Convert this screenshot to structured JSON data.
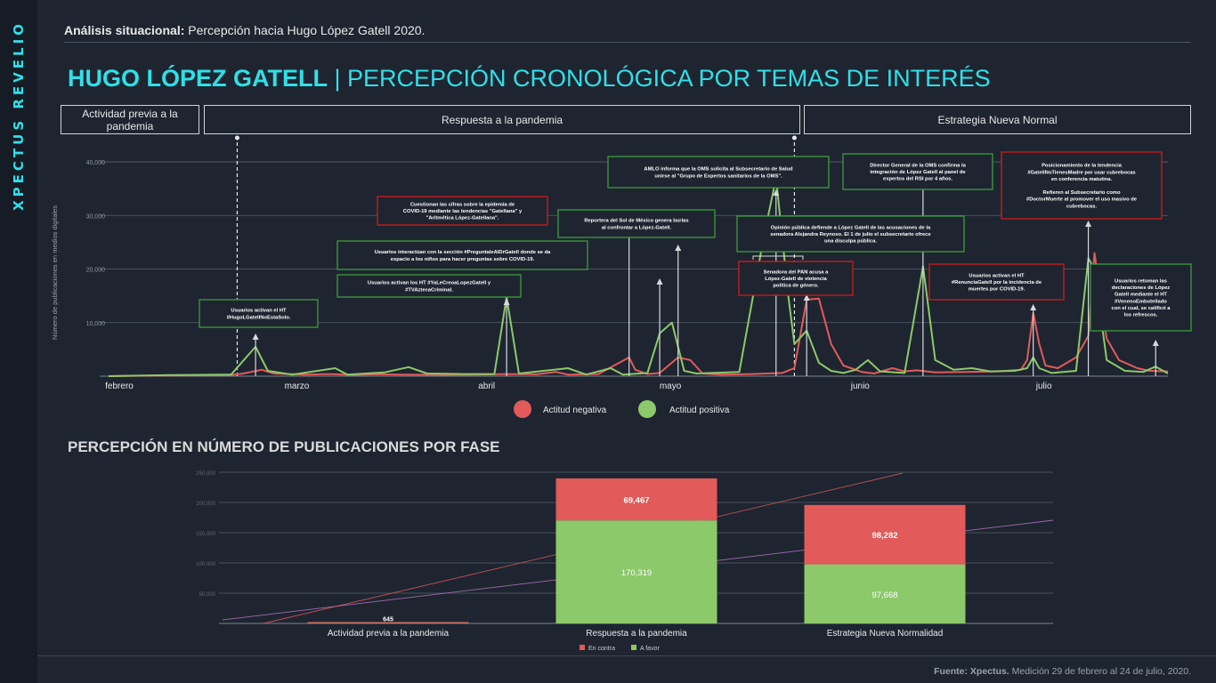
{
  "sidebar": {
    "brand": "XPECTUS REVELIO"
  },
  "header": {
    "label_bold": "Análisis situacional:",
    "label_rest": " Percepción hacia Hugo López Gatell 2020.",
    "title_bold": "HUGO LÓPEZ GATELL",
    "title_rest": " | PERCEPCIÓN CRONOLÓGICA POR TEMAS DE INTERÉS"
  },
  "phases": [
    {
      "label": "Actividad previa a la pandemia"
    },
    {
      "label": "Respuesta a la pandemia"
    },
    {
      "label": "Estrategia Nueva Normal"
    }
  ],
  "colors": {
    "negative": "#e25a5a",
    "positive": "#8cc96a",
    "accent": "#2fe0e8",
    "box_green": "#3d9b3d",
    "box_red": "#d01a1a"
  },
  "chart_data": [
    {
      "type": "line",
      "title": "",
      "ylabel": "Número de publicaciones en medios digitales",
      "yticks": [
        "10,000",
        "20,000",
        "30,000",
        "40,000"
      ],
      "ylim": [
        0,
        42000
      ],
      "xlim": [
        0,
        173
      ],
      "xticks": [
        {
          "x": 0,
          "label": "febrero"
        },
        {
          "x": 29,
          "label": "marzo"
        },
        {
          "x": 60,
          "label": "abril"
        },
        {
          "x": 90,
          "label": "mayo"
        },
        {
          "x": 121,
          "label": "junio"
        },
        {
          "x": 151,
          "label": "julio"
        }
      ],
      "phase_markers": [
        21,
        112
      ],
      "legend": {
        "position": "bottom-center"
      },
      "series": [
        {
          "name": "Actitud negativa",
          "color": "#e25a5a",
          "points": [
            [
              0,
              0
            ],
            [
              10,
              150
            ],
            [
              20,
              200
            ],
            [
              22,
              500
            ],
            [
              25,
              1200
            ],
            [
              27,
              500
            ],
            [
              32,
              300
            ],
            [
              36,
              400
            ],
            [
              40,
              250
            ],
            [
              44,
              350
            ],
            [
              48,
              300
            ],
            [
              55,
              250
            ],
            [
              60,
              300
            ],
            [
              65,
              400
            ],
            [
              70,
              350
            ],
            [
              73,
              800
            ],
            [
              75,
              300
            ],
            [
              80,
              400
            ],
            [
              85,
              3500
            ],
            [
              86,
              1200
            ],
            [
              88,
              400
            ],
            [
              90,
              600
            ],
            [
              93,
              3500
            ],
            [
              95,
              3000
            ],
            [
              97,
              500
            ],
            [
              100,
              300
            ],
            [
              105,
              400
            ],
            [
              110,
              600
            ],
            [
              112,
              1500
            ],
            [
              114,
              14300
            ],
            [
              116,
              14500
            ],
            [
              118,
              6000
            ],
            [
              120,
              2000
            ],
            [
              123,
              800
            ],
            [
              125,
              500
            ],
            [
              128,
              1500
            ],
            [
              130,
              900
            ],
            [
              132,
              1100
            ],
            [
              135,
              700
            ],
            [
              140,
              800
            ],
            [
              145,
              900
            ],
            [
              149,
              1200
            ],
            [
              150,
              3000
            ],
            [
              151,
              11800
            ],
            [
              152,
              6000
            ],
            [
              153,
              2000
            ],
            [
              155,
              1500
            ],
            [
              158,
              3500
            ],
            [
              160,
              7500
            ],
            [
              161,
              23000
            ],
            [
              162,
              15000
            ],
            [
              163,
              7000
            ],
            [
              165,
              3000
            ],
            [
              168,
              1500
            ],
            [
              170,
              1000
            ],
            [
              173,
              900
            ]
          ]
        },
        {
          "name": "Actitud positiva",
          "color": "#8cc96a",
          "points": [
            [
              0,
              0
            ],
            [
              10,
              200
            ],
            [
              20,
              300
            ],
            [
              24,
              5500
            ],
            [
              26,
              1000
            ],
            [
              30,
              300
            ],
            [
              37,
              1500
            ],
            [
              39,
              300
            ],
            [
              45,
              700
            ],
            [
              49,
              1700
            ],
            [
              52,
              500
            ],
            [
              58,
              400
            ],
            [
              63,
              400
            ],
            [
              65,
              14800
            ],
            [
              67,
              500
            ],
            [
              75,
              1500
            ],
            [
              78,
              300
            ],
            [
              82,
              1500
            ],
            [
              84,
              300
            ],
            [
              88,
              600
            ],
            [
              90,
              8000
            ],
            [
              92,
              10000
            ],
            [
              94,
              1000
            ],
            [
              96,
              500
            ],
            [
              103,
              800
            ],
            [
              107,
              26000
            ],
            [
              109,
              37000
            ],
            [
              111,
              15000
            ],
            [
              112,
              6000
            ],
            [
              114,
              8500
            ],
            [
              116,
              2500
            ],
            [
              118,
              1000
            ],
            [
              120,
              600
            ],
            [
              122,
              1200
            ],
            [
              124,
              3000
            ],
            [
              126,
              900
            ],
            [
              130,
              600
            ],
            [
              133,
              20500
            ],
            [
              135,
              3000
            ],
            [
              138,
              1200
            ],
            [
              141,
              1500
            ],
            [
              144,
              900
            ],
            [
              148,
              1000
            ],
            [
              150,
              1500
            ],
            [
              151,
              3500
            ],
            [
              152,
              1500
            ],
            [
              154,
              600
            ],
            [
              158,
              1000
            ],
            [
              160,
              22000
            ],
            [
              161,
              20000
            ],
            [
              163,
              3000
            ],
            [
              166,
              1000
            ],
            [
              169,
              800
            ],
            [
              171,
              1800
            ],
            [
              173,
              500
            ]
          ]
        }
      ],
      "annotations": [
        {
          "text": [
            "Usuarios activan el HT",
            "#HugoLGatellNoEstaSolo."
          ],
          "color": "green"
        },
        {
          "text": [
            "Usuarios interactúan con la sección #PreguntaleAlDrGatell donde se da",
            "espacio a los niños para hacer preguntas sobre COVID-19."
          ],
          "color": "green"
        },
        {
          "text": [
            "Usuarios activan los HT #YaLeCreoaLopezGatell y",
            "#TVAztecaCriminal."
          ],
          "color": "green"
        },
        {
          "text": [
            "Cuestionan las cifras sobre la epidemia de",
            "COVID-19 mediante las tendencias \"Gatellana\" y",
            "\"Aritmética López-Gatellana\"."
          ],
          "color": "red"
        },
        {
          "text": [
            "Reportera del Sol de México genera burlas",
            "al confrontar a López-Gatell."
          ],
          "color": "green"
        },
        {
          "text": [
            "AMLO informa que la OMS solicita al Subsecretario de Salud",
            "unirse al \"Grupo de Expertos sanitarios de la OMS\"."
          ],
          "color": "green"
        },
        {
          "text": [
            "Opinión pública defiende a López Gatell de las acusaciones de la",
            "senadora Alejandra Reynoso. El 1 de julio el subsecretario ofrece",
            "una disculpa pública."
          ],
          "color": "green"
        },
        {
          "text": [
            "Senadora del PAN acusa a",
            "López-Gatell de violencia",
            "política de género."
          ],
          "color": "red"
        },
        {
          "text": [
            "Director General de la OMS confirma la",
            "integración de López Gatell al panel de",
            "expertos del RSI por 4 años."
          ],
          "color": "green"
        },
        {
          "text": [
            "Usuarios activan el HT",
            "#RenunciaGatell por la incidencia de",
            "muertes por COVID-19."
          ],
          "color": "red"
        },
        {
          "text": [
            "Posicionamiento de la tendencia",
            "#GatellNoTienesMadre por usar cubrebocas",
            "en conferencia matutina.",
            "",
            "Refieren al Subsecretario como",
            "#DoctorMuerte al promover el uso masivo de",
            "cubrebocas."
          ],
          "color": "red"
        },
        {
          "text": [
            "Usuarios retoman las",
            "declaraciones de López",
            "Gatell mediante el HT",
            "#VenenoEmbotellado",
            "con el cual, se calificó a",
            "los refrescos."
          ],
          "color": "green"
        }
      ]
    },
    {
      "type": "bar",
      "title": "PERCEPCIÓN EN NÚMERO DE PUBLICACIONES POR FASE",
      "categories": [
        "Actividad previa a la pandemia",
        "Respuesta a la pandemia",
        "Estrategia Nueva Normalidad"
      ],
      "stacked": true,
      "ylim": [
        0,
        250000
      ],
      "yticks": [
        "50,000",
        "100,000",
        "150,000",
        "200,000",
        "250,000"
      ],
      "series": [
        {
          "name": "A favor",
          "color": "#8cc96a",
          "values": [
            440,
            170319,
            97668
          ],
          "labels": [
            "",
            "170,319",
            "97,668"
          ]
        },
        {
          "name": "En contra",
          "color": "#e25a5a",
          "values": [
            645,
            69467,
            98282
          ],
          "labels": [
            "645",
            "69,467",
            "98,282"
          ]
        }
      ],
      "legend": {
        "position": "bottom-center"
      }
    }
  ],
  "footer": {
    "source_bold": "Fuente: Xpectus.",
    "source_rest": " Medición 29 de febrero al 24 de julio, 2020."
  }
}
